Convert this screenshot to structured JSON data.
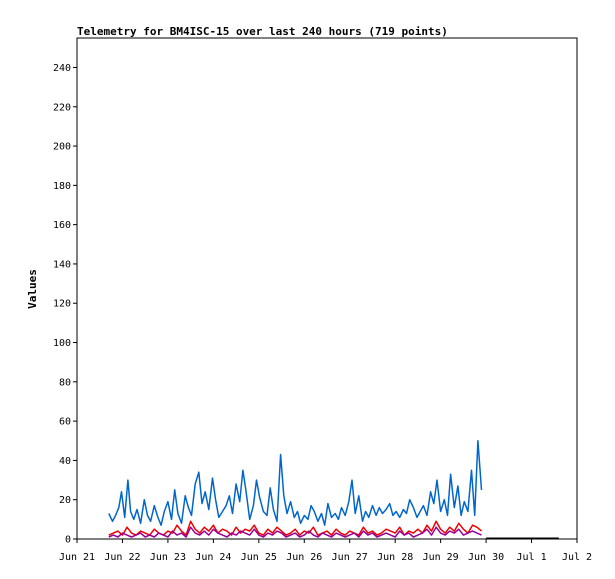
{
  "chart_data": {
    "type": "line",
    "title": "Telemetry for BM4ISC-15 over last 240 hours (719 points)",
    "ylabel": "Values",
    "xlabel": "",
    "ylim": [
      0,
      255
    ],
    "yticks": [
      0,
      20,
      40,
      60,
      80,
      100,
      120,
      140,
      160,
      180,
      200,
      220,
      240
    ],
    "xlim": [
      0,
      11
    ],
    "xticks": [
      {
        "label": "Jun 21",
        "day": 0
      },
      {
        "label": "Jun 22",
        "day": 1
      },
      {
        "label": "Jun 23",
        "day": 2
      },
      {
        "label": "Jun 24",
        "day": 3
      },
      {
        "label": "Jun 25",
        "day": 4
      },
      {
        "label": "Jun 26",
        "day": 5
      },
      {
        "label": "Jun 27",
        "day": 6
      },
      {
        "label": "Jun 28",
        "day": 7
      },
      {
        "label": "Jun 29",
        "day": 8
      },
      {
        "label": "Jun 30",
        "day": 9
      },
      {
        "label": "Jul 1",
        "day": 10
      },
      {
        "label": "Jul 2",
        "day": 11
      }
    ],
    "grid": false,
    "legend": "none",
    "baseline": {
      "color": "#000000",
      "x": [
        9.0,
        10.6
      ],
      "y": [
        0,
        0
      ]
    },
    "series": [
      {
        "color": "#0066cc",
        "x": [
          0.7,
          0.78,
          0.85,
          0.92,
          0.98,
          1.05,
          1.12,
          1.18,
          1.25,
          1.32,
          1.4,
          1.48,
          1.55,
          1.62,
          1.7,
          1.78,
          1.85,
          1.92,
          2.0,
          2.08,
          2.15,
          2.22,
          2.3,
          2.38,
          2.45,
          2.52,
          2.6,
          2.68,
          2.75,
          2.82,
          2.9,
          2.98,
          3.05,
          3.12,
          3.2,
          3.28,
          3.35,
          3.42,
          3.5,
          3.58,
          3.65,
          3.72,
          3.8,
          3.88,
          3.95,
          4.02,
          4.1,
          4.18,
          4.25,
          4.32,
          4.4,
          4.48,
          4.55,
          4.62,
          4.7,
          4.78,
          4.85,
          4.92,
          5.0,
          5.08,
          5.15,
          5.22,
          5.3,
          5.38,
          5.45,
          5.52,
          5.6,
          5.68,
          5.75,
          5.82,
          5.9,
          5.98,
          6.05,
          6.12,
          6.2,
          6.28,
          6.35,
          6.42,
          6.5,
          6.58,
          6.65,
          6.72,
          6.8,
          6.88,
          6.95,
          7.02,
          7.1,
          7.18,
          7.25,
          7.32,
          7.4,
          7.48,
          7.55,
          7.62,
          7.7,
          7.78,
          7.85,
          7.92,
          8.0,
          8.08,
          8.15,
          8.22,
          8.3,
          8.38,
          8.45,
          8.52,
          8.6,
          8.68,
          8.75,
          8.82,
          8.9
        ],
        "y": [
          13,
          9,
          12,
          16,
          24,
          11,
          30,
          14,
          10,
          15,
          8,
          20,
          12,
          9,
          17,
          11,
          7,
          14,
          19,
          10,
          25,
          13,
          8,
          22,
          16,
          12,
          28,
          34,
          18,
          24,
          15,
          31,
          20,
          11,
          14,
          17,
          22,
          13,
          28,
          19,
          35,
          24,
          10,
          17,
          30,
          21,
          14,
          12,
          26,
          15,
          9,
          43,
          22,
          13,
          19,
          11,
          14,
          8,
          12,
          10,
          17,
          14,
          9,
          13,
          7,
          18,
          11,
          13,
          10,
          16,
          12,
          19,
          30,
          13,
          22,
          9,
          14,
          11,
          17,
          12,
          16,
          13,
          15,
          18,
          12,
          14,
          11,
          15,
          13,
          20,
          16,
          11,
          14,
          17,
          12,
          24,
          18,
          30,
          14,
          20,
          12,
          33,
          16,
          27,
          12,
          19,
          14,
          35,
          12,
          50,
          25
        ]
      },
      {
        "color": "#ee0000",
        "x": [
          0.7,
          0.8,
          0.9,
          1.0,
          1.1,
          1.2,
          1.3,
          1.4,
          1.5,
          1.6,
          1.7,
          1.8,
          1.9,
          2.0,
          2.1,
          2.2,
          2.3,
          2.4,
          2.5,
          2.6,
          2.7,
          2.8,
          2.9,
          3.0,
          3.1,
          3.2,
          3.3,
          3.4,
          3.5,
          3.6,
          3.7,
          3.8,
          3.9,
          4.0,
          4.1,
          4.2,
          4.3,
          4.4,
          4.5,
          4.6,
          4.7,
          4.8,
          4.9,
          5.0,
          5.1,
          5.2,
          5.3,
          5.4,
          5.5,
          5.6,
          5.7,
          5.8,
          5.9,
          6.0,
          6.1,
          6.2,
          6.3,
          6.4,
          6.5,
          6.6,
          6.7,
          6.8,
          6.9,
          7.0,
          7.1,
          7.2,
          7.3,
          7.4,
          7.5,
          7.6,
          7.7,
          7.8,
          7.9,
          8.0,
          8.1,
          8.2,
          8.3,
          8.4,
          8.5,
          8.6,
          8.7,
          8.8,
          8.9
        ],
        "y": [
          2,
          3,
          4,
          2,
          6,
          3,
          2,
          4,
          3,
          2,
          5,
          3,
          2,
          4,
          3,
          7,
          4,
          2,
          9,
          5,
          3,
          6,
          4,
          7,
          3,
          5,
          4,
          2,
          6,
          3,
          5,
          4,
          7,
          3,
          2,
          5,
          3,
          6,
          4,
          2,
          3,
          5,
          2,
          4,
          3,
          6,
          2,
          3,
          4,
          2,
          5,
          3,
          2,
          4,
          3,
          2,
          6,
          3,
          4,
          2,
          3,
          5,
          4,
          3,
          6,
          2,
          4,
          3,
          5,
          3,
          7,
          4,
          9,
          5,
          3,
          6,
          4,
          8,
          5,
          3,
          7,
          6,
          4
        ]
      },
      {
        "color": "#990099",
        "x": [
          0.7,
          0.8,
          0.9,
          1.0,
          1.1,
          1.2,
          1.3,
          1.4,
          1.5,
          1.6,
          1.7,
          1.8,
          1.9,
          2.0,
          2.1,
          2.2,
          2.3,
          2.4,
          2.5,
          2.6,
          2.7,
          2.8,
          2.9,
          3.0,
          3.1,
          3.2,
          3.3,
          3.4,
          3.5,
          3.6,
          3.7,
          3.8,
          3.9,
          4.0,
          4.1,
          4.2,
          4.3,
          4.4,
          4.5,
          4.6,
          4.7,
          4.8,
          4.9,
          5.0,
          5.1,
          5.2,
          5.3,
          5.4,
          5.5,
          5.6,
          5.7,
          5.8,
          5.9,
          6.0,
          6.1,
          6.2,
          6.3,
          6.4,
          6.5,
          6.6,
          6.7,
          6.8,
          6.9,
          7.0,
          7.1,
          7.2,
          7.3,
          7.4,
          7.5,
          7.6,
          7.7,
          7.8,
          7.9,
          8.0,
          8.1,
          8.2,
          8.3,
          8.4,
          8.5,
          8.6,
          8.7,
          8.8,
          8.9
        ],
        "y": [
          1,
          2,
          1,
          3,
          2,
          1,
          2,
          3,
          1,
          2,
          1,
          3,
          2,
          1,
          4,
          2,
          3,
          1,
          6,
          3,
          2,
          4,
          2,
          5,
          3,
          2,
          1,
          3,
          2,
          4,
          3,
          2,
          5,
          2,
          1,
          3,
          2,
          4,
          3,
          1,
          2,
          3,
          1,
          2,
          4,
          2,
          1,
          3,
          2,
          1,
          3,
          2,
          1,
          2,
          3,
          1,
          4,
          2,
          3,
          1,
          2,
          3,
          2,
          1,
          4,
          2,
          3,
          1,
          2,
          3,
          5,
          2,
          6,
          3,
          2,
          4,
          3,
          5,
          2,
          3,
          4,
          3,
          2
        ]
      }
    ]
  }
}
